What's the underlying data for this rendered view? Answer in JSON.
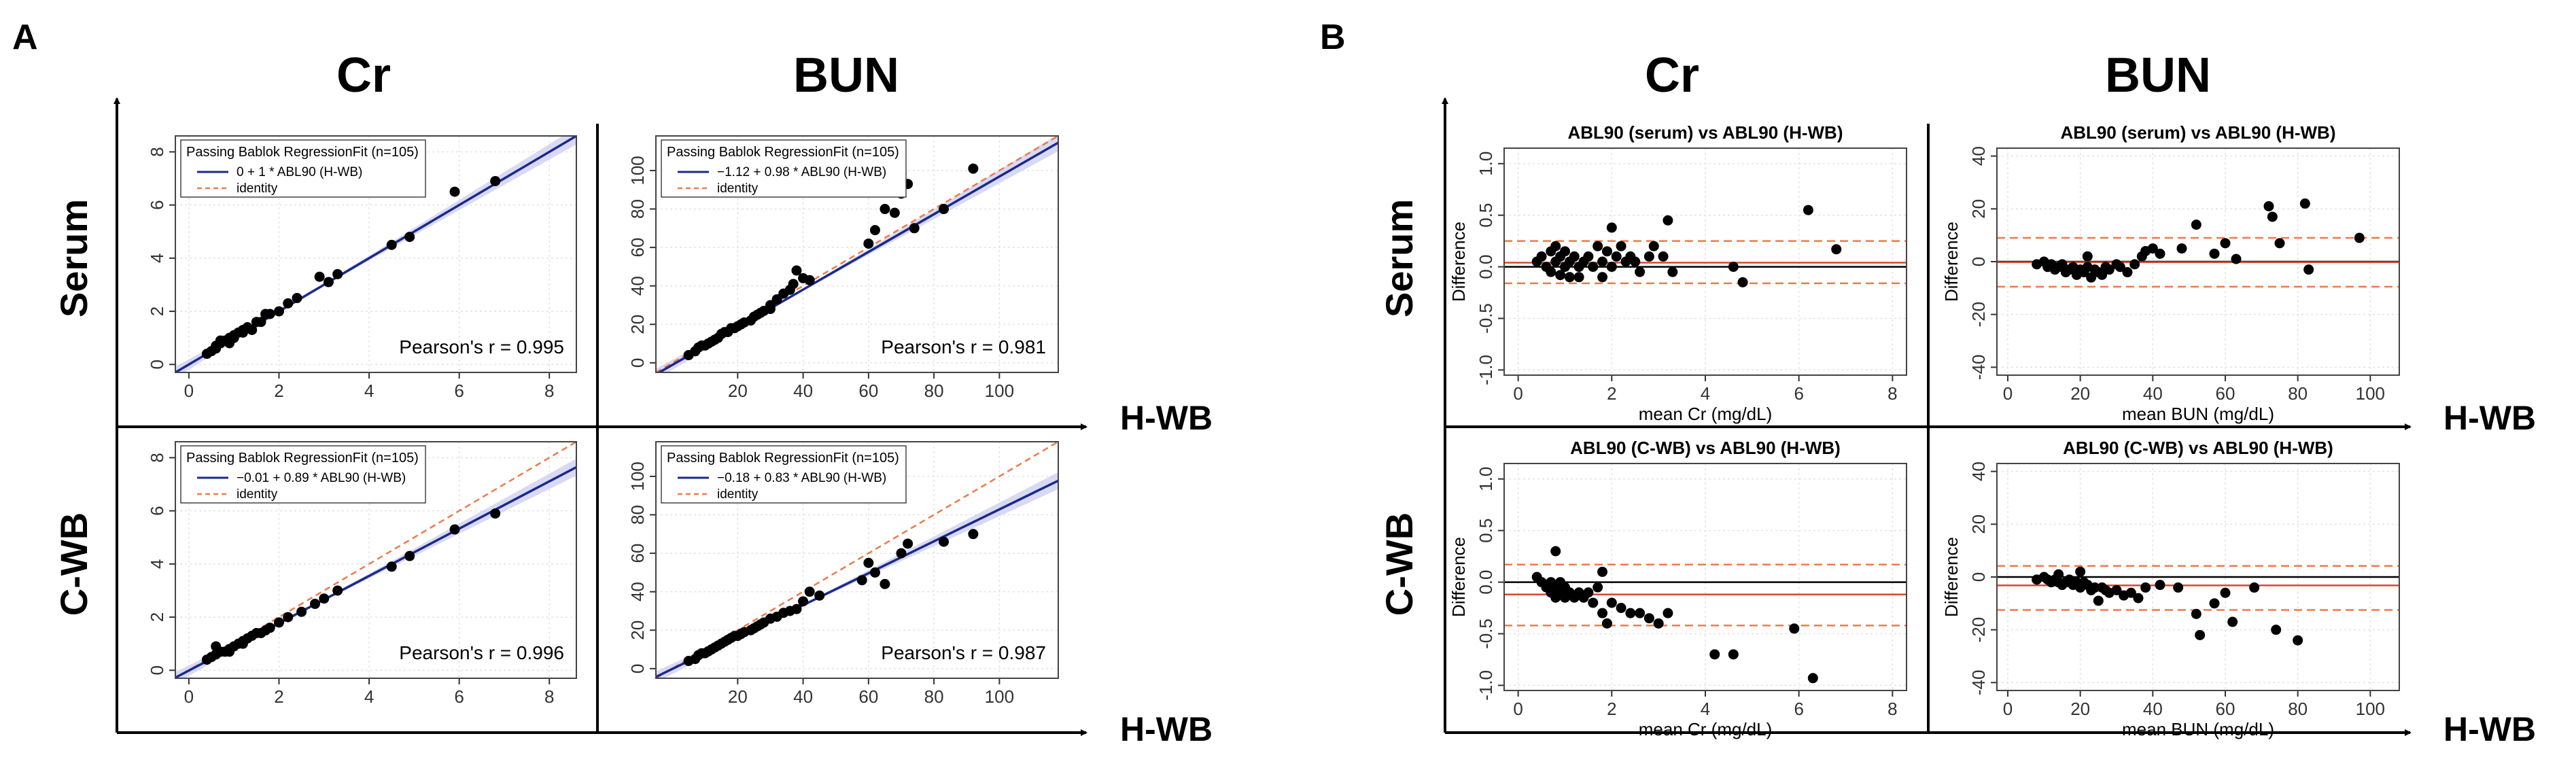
{
  "panels": {
    "A": {
      "letter": "A",
      "cols": [
        "Cr",
        "BUN"
      ],
      "rows": [
        "Serum",
        "C-WB"
      ],
      "axis_label": "H-WB"
    },
    "B": {
      "letter": "B",
      "cols": [
        "Cr",
        "BUN"
      ],
      "rows": [
        "Serum",
        "C-WB"
      ],
      "axis_label": "H-WB"
    }
  },
  "colors": {
    "fit_line": "#1a2a8c",
    "identity_line": "#ee7a4a",
    "ci_band": "#c9c9ee",
    "mean_line": "#d24a2a",
    "limit_line": "#ee7a4a",
    "zero_line": "#000000",
    "point": "#000000"
  },
  "chart_data": [
    {
      "id": "a-cr-serum",
      "type": "scatter",
      "legend_title": "Passing Bablok RegressionFit (n=105)",
      "fit_label": "0 + 1 * ABL90 (H-WB)",
      "identity_label": "identity",
      "pearson": "Pearson's r = 0.995",
      "intercept": 0,
      "slope": 1.0,
      "xlim": [
        -0.3,
        8.6
      ],
      "ylim": [
        -0.3,
        8.6
      ],
      "xticks": [
        "0",
        "2",
        "4",
        "6",
        "8"
      ],
      "yticks": [
        "0",
        "2",
        "4",
        "6",
        "8"
      ],
      "points": [
        [
          0.4,
          0.4
        ],
        [
          0.5,
          0.5
        ],
        [
          0.6,
          0.7
        ],
        [
          0.7,
          0.8
        ],
        [
          0.8,
          0.9
        ],
        [
          0.9,
          1.0
        ],
        [
          1.0,
          1.0
        ],
        [
          1.1,
          1.2
        ],
        [
          1.2,
          1.2
        ],
        [
          1.3,
          1.4
        ],
        [
          1.4,
          1.3
        ],
        [
          1.5,
          1.6
        ],
        [
          1.6,
          1.6
        ],
        [
          1.8,
          1.9
        ],
        [
          2.0,
          2.0
        ],
        [
          2.2,
          2.3
        ],
        [
          2.4,
          2.5
        ],
        [
          2.9,
          3.3
        ],
        [
          3.1,
          3.1
        ],
        [
          3.3,
          3.4
        ],
        [
          4.5,
          4.5
        ],
        [
          4.9,
          4.8
        ],
        [
          5.9,
          6.5
        ],
        [
          6.8,
          6.9
        ],
        [
          0.7,
          0.9
        ],
        [
          0.9,
          0.8
        ],
        [
          1.2,
          1.3
        ],
        [
          1.7,
          1.9
        ],
        [
          0.6,
          0.6
        ],
        [
          1.0,
          1.1
        ]
      ]
    },
    {
      "id": "a-bun-serum",
      "type": "scatter",
      "legend_title": "Passing Bablok RegressionFit (n=105)",
      "fit_label": "−1.12 + 0.98 * ABL90 (H-WB)",
      "identity_label": "identity",
      "pearson": "Pearson's r = 0.981",
      "intercept": -1.12,
      "slope": 0.98,
      "xlim": [
        -5,
        118
      ],
      "ylim": [
        -5,
        118
      ],
      "xticks": [
        "20",
        "40",
        "60",
        "80",
        "100"
      ],
      "yticks": [
        "0",
        "20",
        "40",
        "60",
        "80",
        "100"
      ],
      "points": [
        [
          5,
          4
        ],
        [
          7,
          6
        ],
        [
          8,
          8
        ],
        [
          10,
          9
        ],
        [
          11,
          10
        ],
        [
          12,
          11
        ],
        [
          13,
          12
        ],
        [
          14,
          13
        ],
        [
          15,
          15
        ],
        [
          16,
          16
        ],
        [
          17,
          16
        ],
        [
          18,
          18
        ],
        [
          20,
          19
        ],
        [
          21,
          20
        ],
        [
          22,
          21
        ],
        [
          24,
          22
        ],
        [
          25,
          24
        ],
        [
          27,
          26
        ],
        [
          28,
          27
        ],
        [
          30,
          30
        ],
        [
          32,
          33
        ],
        [
          34,
          36
        ],
        [
          36,
          38
        ],
        [
          37,
          41
        ],
        [
          40,
          44
        ],
        [
          42,
          43
        ],
        [
          38,
          48
        ],
        [
          60,
          62
        ],
        [
          62,
          69
        ],
        [
          65,
          80
        ],
        [
          68,
          78
        ],
        [
          70,
          88
        ],
        [
          72,
          93
        ],
        [
          74,
          70
        ],
        [
          83,
          80
        ],
        [
          92,
          101
        ],
        [
          30,
          28
        ],
        [
          26,
          25
        ],
        [
          19,
          18
        ],
        [
          9,
          9
        ]
      ]
    },
    {
      "id": "a-cr-cwb",
      "type": "scatter",
      "legend_title": "Passing Bablok RegressionFit (n=105)",
      "fit_label": "−0.01 + 0.89 * ABL90 (H-WB)",
      "identity_label": "identity",
      "pearson": "Pearson's r = 0.996",
      "intercept": -0.01,
      "slope": 0.89,
      "xlim": [
        -0.3,
        8.6
      ],
      "ylim": [
        -0.3,
        8.6
      ],
      "xticks": [
        "0",
        "2",
        "4",
        "6",
        "8"
      ],
      "yticks": [
        "0",
        "2",
        "4",
        "6",
        "8"
      ],
      "points": [
        [
          0.4,
          0.4
        ],
        [
          0.5,
          0.5
        ],
        [
          0.6,
          0.6
        ],
        [
          0.7,
          0.7
        ],
        [
          0.8,
          0.7
        ],
        [
          0.9,
          0.8
        ],
        [
          1.0,
          0.9
        ],
        [
          1.1,
          1.0
        ],
        [
          1.2,
          1.1
        ],
        [
          1.3,
          1.2
        ],
        [
          1.4,
          1.3
        ],
        [
          1.5,
          1.4
        ],
        [
          1.6,
          1.4
        ],
        [
          1.8,
          1.6
        ],
        [
          2.0,
          1.8
        ],
        [
          2.2,
          2.0
        ],
        [
          2.5,
          2.2
        ],
        [
          2.8,
          2.5
        ],
        [
          3.0,
          2.7
        ],
        [
          3.3,
          3.0
        ],
        [
          4.5,
          3.9
        ],
        [
          4.9,
          4.3
        ],
        [
          5.9,
          5.3
        ],
        [
          6.8,
          5.9
        ],
        [
          0.6,
          0.9
        ],
        [
          0.9,
          0.7
        ],
        [
          1.2,
          1.0
        ],
        [
          1.7,
          1.5
        ]
      ]
    },
    {
      "id": "a-bun-cwb",
      "type": "scatter",
      "legend_title": "Passing Bablok RegressionFit (n=105)",
      "fit_label": "−0.18 + 0.83 * ABL90 (H-WB)",
      "identity_label": "identity",
      "pearson": "Pearson's r = 0.987",
      "intercept": -0.18,
      "slope": 0.83,
      "xlim": [
        -5,
        118
      ],
      "ylim": [
        -5,
        118
      ],
      "xticks": [
        "20",
        "40",
        "60",
        "80",
        "100"
      ],
      "yticks": [
        "0",
        "20",
        "40",
        "60",
        "80",
        "100"
      ],
      "points": [
        [
          5,
          4
        ],
        [
          7,
          5
        ],
        [
          8,
          7
        ],
        [
          10,
          8
        ],
        [
          11,
          9
        ],
        [
          12,
          10
        ],
        [
          13,
          11
        ],
        [
          14,
          12
        ],
        [
          15,
          13
        ],
        [
          16,
          14
        ],
        [
          17,
          15
        ],
        [
          18,
          16
        ],
        [
          20,
          17
        ],
        [
          21,
          18
        ],
        [
          22,
          19
        ],
        [
          24,
          20
        ],
        [
          25,
          21
        ],
        [
          27,
          23
        ],
        [
          28,
          24
        ],
        [
          30,
          26
        ],
        [
          32,
          27
        ],
        [
          34,
          29
        ],
        [
          36,
          30
        ],
        [
          38,
          31
        ],
        [
          40,
          35
        ],
        [
          42,
          40
        ],
        [
          45,
          38
        ],
        [
          58,
          46
        ],
        [
          60,
          55
        ],
        [
          62,
          50
        ],
        [
          65,
          44
        ],
        [
          70,
          60
        ],
        [
          72,
          65
        ],
        [
          83,
          66
        ],
        [
          92,
          70
        ],
        [
          19,
          17
        ],
        [
          26,
          22
        ],
        [
          9,
          8
        ]
      ]
    },
    {
      "id": "b-cr-serum",
      "type": "bland-altman",
      "title": "ABL90 (serum) vs ABL90 (H-WB)",
      "xlabel": "mean Cr (mg/dL)",
      "ylabel": "Difference",
      "xlim": [
        -0.3,
        8.3
      ],
      "ylim": [
        -1.05,
        1.15
      ],
      "xticks": [
        "0",
        "2",
        "4",
        "6",
        "8"
      ],
      "yticks": [
        "-1.0",
        "-0.5",
        "0.0",
        "0.5",
        "1.0"
      ],
      "mean": 0.04,
      "upper": 0.25,
      "lower": -0.16,
      "points": [
        [
          0.4,
          0.05
        ],
        [
          0.5,
          0.1
        ],
        [
          0.6,
          0.0
        ],
        [
          0.7,
          0.15
        ],
        [
          0.7,
          -0.05
        ],
        [
          0.8,
          0.2
        ],
        [
          0.8,
          0.05
        ],
        [
          0.9,
          0.1
        ],
        [
          0.9,
          -0.08
        ],
        [
          1.0,
          0.0
        ],
        [
          1.0,
          0.15
        ],
        [
          1.1,
          0.05
        ],
        [
          1.1,
          -0.1
        ],
        [
          1.2,
          0.1
        ],
        [
          1.3,
          0.0
        ],
        [
          1.3,
          -0.1
        ],
        [
          1.4,
          0.05
        ],
        [
          1.5,
          0.1
        ],
        [
          1.6,
          0.0
        ],
        [
          1.7,
          0.2
        ],
        [
          1.8,
          0.05
        ],
        [
          1.8,
          -0.1
        ],
        [
          1.9,
          0.15
        ],
        [
          2.0,
          0.0
        ],
        [
          2.1,
          0.1
        ],
        [
          2.2,
          0.2
        ],
        [
          2.3,
          0.05
        ],
        [
          2.4,
          0.1
        ],
        [
          2.5,
          0.05
        ],
        [
          2.6,
          -0.05
        ],
        [
          2.8,
          0.1
        ],
        [
          2.9,
          0.2
        ],
        [
          3.1,
          0.1
        ],
        [
          3.2,
          0.45
        ],
        [
          3.3,
          -0.05
        ],
        [
          4.6,
          0.0
        ],
        [
          4.8,
          -0.15
        ],
        [
          6.2,
          0.55
        ],
        [
          6.8,
          0.17
        ],
        [
          2.0,
          0.38
        ]
      ]
    },
    {
      "id": "b-bun-serum",
      "type": "bland-altman",
      "title": "ABL90 (serum) vs ABL90 (H-WB)",
      "xlabel": "mean BUN (mg/dL)",
      "ylabel": "Difference",
      "xlim": [
        -3,
        108
      ],
      "ylim": [
        -43,
        43
      ],
      "xticks": [
        "0",
        "20",
        "40",
        "60",
        "80",
        "100"
      ],
      "yticks": [
        "-40",
        "-20",
        "0",
        "20",
        "40"
      ],
      "mean": -0.2,
      "upper": 9.0,
      "lower": -9.5,
      "points": [
        [
          8,
          -1
        ],
        [
          10,
          0
        ],
        [
          11,
          -2
        ],
        [
          12,
          -1
        ],
        [
          13,
          -3
        ],
        [
          14,
          -2
        ],
        [
          15,
          -1
        ],
        [
          16,
          -4
        ],
        [
          17,
          -3
        ],
        [
          18,
          -2
        ],
        [
          19,
          -5
        ],
        [
          20,
          -3
        ],
        [
          21,
          -4
        ],
        [
          22,
          -2
        ],
        [
          23,
          -6
        ],
        [
          24,
          -3
        ],
        [
          25,
          -4
        ],
        [
          26,
          -5
        ],
        [
          27,
          -2
        ],
        [
          28,
          -3
        ],
        [
          30,
          -1
        ],
        [
          31,
          -2
        ],
        [
          33,
          -4
        ],
        [
          35,
          -1
        ],
        [
          37,
          2
        ],
        [
          38,
          4
        ],
        [
          40,
          5
        ],
        [
          42,
          3
        ],
        [
          48,
          5
        ],
        [
          52,
          14
        ],
        [
          57,
          3
        ],
        [
          60,
          7
        ],
        [
          63,
          1
        ],
        [
          72,
          21
        ],
        [
          73,
          17
        ],
        [
          75,
          7
        ],
        [
          82,
          22
        ],
        [
          83,
          -3
        ],
        [
          97,
          9
        ],
        [
          22,
          2
        ]
      ]
    },
    {
      "id": "b-cr-cwb",
      "type": "bland-altman",
      "title": "ABL90 (C-WB) vs ABL90 (H-WB)",
      "xlabel": "mean Cr (mg/dL)",
      "ylabel": "Difference",
      "xlim": [
        -0.3,
        8.3
      ],
      "ylim": [
        -1.05,
        1.15
      ],
      "xticks": [
        "0",
        "2",
        "4",
        "6",
        "8"
      ],
      "yticks": [
        "-1.0",
        "-0.5",
        "0.0",
        "0.5",
        "1.0"
      ],
      "mean": -0.12,
      "upper": 0.17,
      "lower": -0.42,
      "points": [
        [
          0.4,
          0.05
        ],
        [
          0.5,
          0.0
        ],
        [
          0.6,
          -0.05
        ],
        [
          0.7,
          0.0
        ],
        [
          0.7,
          -0.1
        ],
        [
          0.8,
          -0.05
        ],
        [
          0.8,
          -0.15
        ],
        [
          0.9,
          0.0
        ],
        [
          0.9,
          -0.1
        ],
        [
          1.0,
          -0.05
        ],
        [
          1.0,
          -0.15
        ],
        [
          1.1,
          -0.1
        ],
        [
          1.2,
          -0.15
        ],
        [
          1.3,
          -0.1
        ],
        [
          1.4,
          -0.15
        ],
        [
          1.5,
          -0.1
        ],
        [
          1.6,
          -0.2
        ],
        [
          1.7,
          -0.05
        ],
        [
          1.8,
          -0.3
        ],
        [
          1.9,
          -0.4
        ],
        [
          2.0,
          -0.2
        ],
        [
          2.2,
          -0.25
        ],
        [
          2.4,
          -0.3
        ],
        [
          2.6,
          -0.3
        ],
        [
          2.8,
          -0.35
        ],
        [
          3.0,
          -0.4
        ],
        [
          3.2,
          -0.3
        ],
        [
          4.2,
          -0.7
        ],
        [
          4.6,
          -0.7
        ],
        [
          5.9,
          -0.45
        ],
        [
          6.3,
          -0.93
        ],
        [
          0.8,
          0.3
        ],
        [
          1.8,
          0.1
        ]
      ]
    },
    {
      "id": "b-bun-cwb",
      "type": "bland-altman",
      "title": "ABL90 (C-WB) vs ABL90 (H-WB)",
      "xlabel": "mean BUN (mg/dL)",
      "ylabel": "Difference",
      "xlim": [
        -3,
        108
      ],
      "ylim": [
        -43,
        43
      ],
      "xticks": [
        "0",
        "20",
        "40",
        "60",
        "80",
        "100"
      ],
      "yticks": [
        "-40",
        "-20",
        "0",
        "20",
        "40"
      ],
      "mean": -3.2,
      "upper": 4.2,
      "lower": -12.5,
      "points": [
        [
          8,
          -1
        ],
        [
          10,
          0
        ],
        [
          11,
          -1
        ],
        [
          12,
          -2
        ],
        [
          13,
          -1
        ],
        [
          14,
          -2
        ],
        [
          15,
          -3
        ],
        [
          16,
          -2
        ],
        [
          17,
          -1
        ],
        [
          18,
          -3
        ],
        [
          19,
          -2
        ],
        [
          20,
          -4
        ],
        [
          21,
          -2
        ],
        [
          22,
          -3
        ],
        [
          23,
          -5
        ],
        [
          24,
          -4
        ],
        [
          25,
          -9
        ],
        [
          26,
          -4
        ],
        [
          27,
          -5
        ],
        [
          28,
          -6
        ],
        [
          30,
          -5
        ],
        [
          32,
          -7
        ],
        [
          34,
          -6
        ],
        [
          36,
          -8
        ],
        [
          38,
          -4
        ],
        [
          42,
          -3
        ],
        [
          47,
          -4
        ],
        [
          52,
          -14
        ],
        [
          53,
          -22
        ],
        [
          57,
          -10
        ],
        [
          60,
          -6
        ],
        [
          62,
          -17
        ],
        [
          68,
          -4
        ],
        [
          74,
          -20
        ],
        [
          80,
          -24
        ],
        [
          20,
          2
        ],
        [
          14,
          1
        ]
      ]
    }
  ]
}
